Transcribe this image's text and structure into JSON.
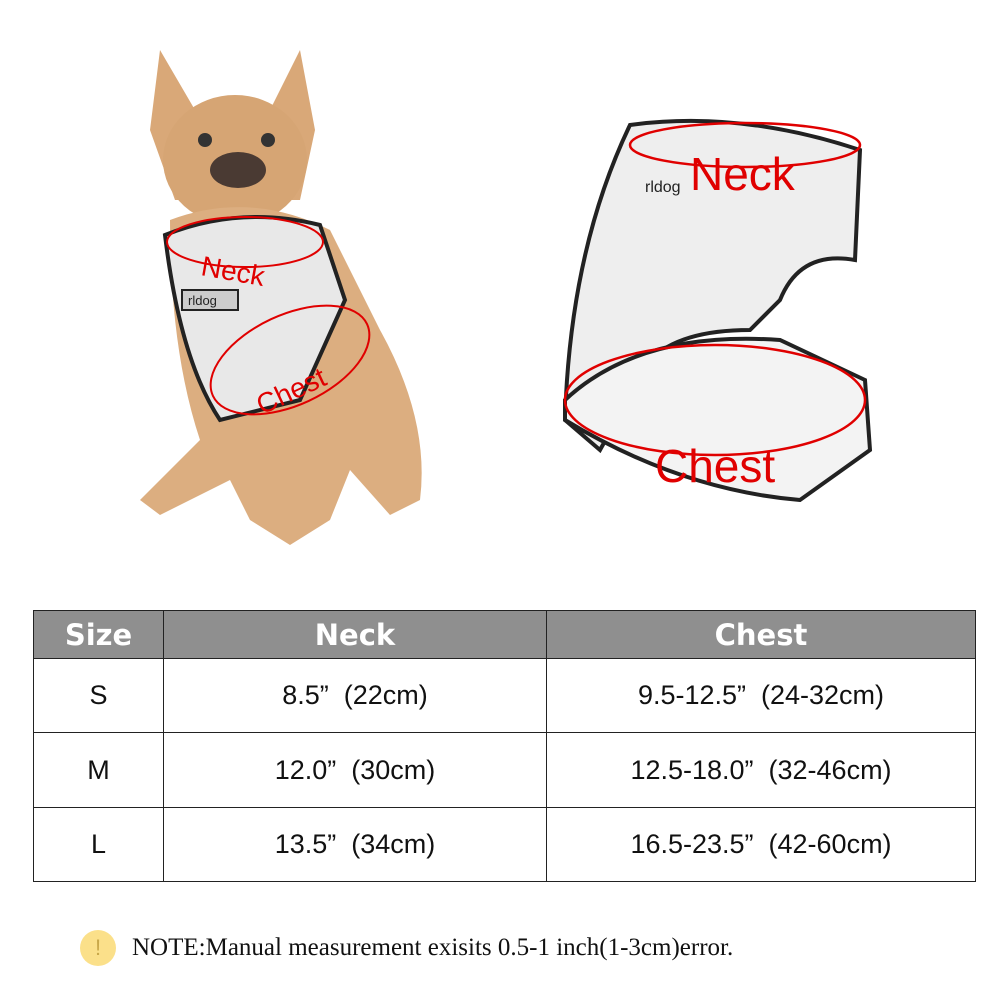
{
  "illustration": {
    "dog_labels": {
      "neck": "Neck",
      "chest": "Chest"
    },
    "harness_labels": {
      "neck": "Neck",
      "chest": "Chest"
    },
    "brand_tag": "rldog",
    "annotation_color": "#e00000"
  },
  "size_table": {
    "headers": [
      "Size",
      "Neck",
      "Chest"
    ],
    "rows": [
      {
        "size": "S",
        "neck": "8.5”  (22cm)",
        "chest": "9.5-12.5”  (24-32cm)"
      },
      {
        "size": "M",
        "neck": "12.0”  (30cm)",
        "chest": "12.5-18.0”  (32-46cm)"
      },
      {
        "size": "L",
        "neck": "13.5”  (34cm)",
        "chest": "16.5-23.5”  (42-60cm)"
      }
    ],
    "header_color": "#8f8f8f"
  },
  "note": {
    "icon": "exclamation-icon",
    "symbol": "!",
    "text": "NOTE:Manual measurement exisits 0.5-1 inch(1-3cm)error."
  }
}
